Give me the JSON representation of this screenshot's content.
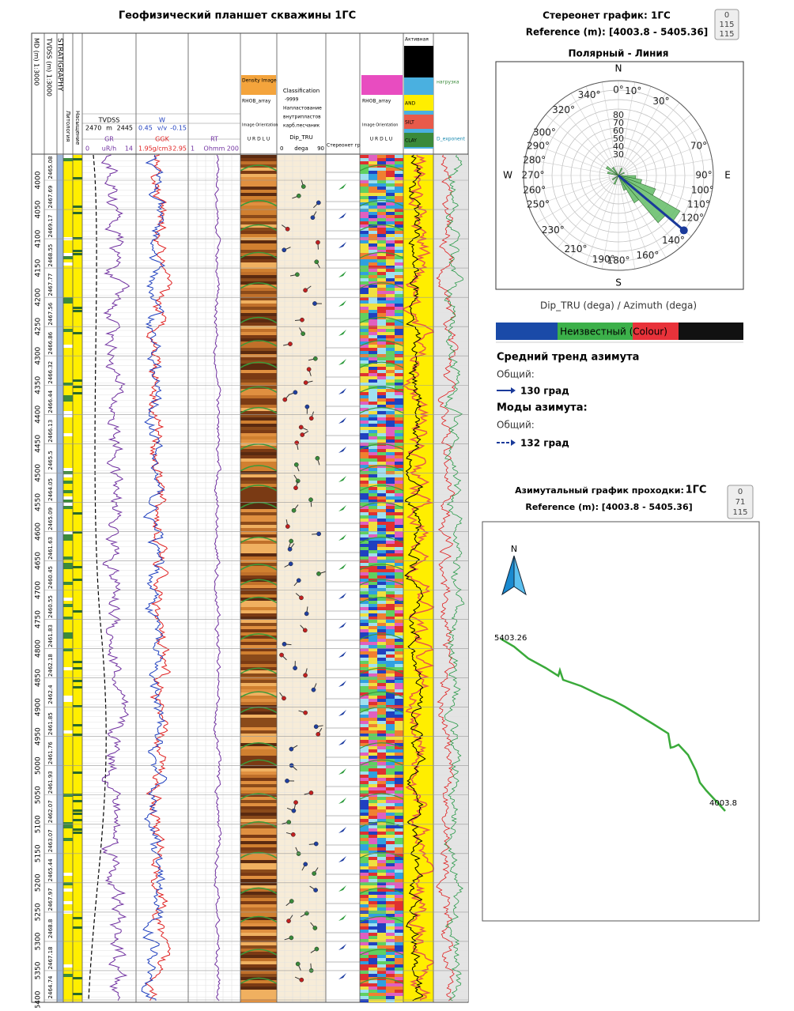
{
  "log": {
    "title": "Геофизический планшет скважины 1ГС",
    "header": {
      "md": "MD (m) 1:3000",
      "tvdss": "TVDSS (m) 1:3000",
      "strat": "STRATIGRAPHY",
      "lith": "Литология",
      "sat": "Насыщение",
      "tvdss_curve": "TVDSS",
      "tvdss_min": "2470",
      "tvdss_unit": "m",
      "tvdss_max": "2445",
      "gr": "GR",
      "gr_min": "0",
      "gr_unit": "uR/h",
      "gr_max": "14",
      "w": "W",
      "w_min": "0.45",
      "w_unit": "v/v",
      "w_max": "-0.15",
      "ggk": "GGK",
      "ggk_min": "1.95",
      "ggk_unit": "g/cm3",
      "ggk_max": "2.95",
      "rt": "RT",
      "rt_min": "1",
      "rt_unit": "Ohmm",
      "rt_max": "200",
      "density_image": "Density Image",
      "rhob_array": "RHOB_array",
      "image_orientation": "Image Orientation",
      "urdlu": "U R D L U",
      "classification": "Classification",
      "class_1": "-9999",
      "class_2": "Напластование",
      "class_3": "внутрипластов",
      "class_4": "карб.песчаник",
      "dip": "Dip_TRU",
      "dip_min": "0",
      "dip_unit": "dega",
      "dip_max": "90",
      "stereo": "Стереонет гр",
      "image2": "Image Orientation",
      "rhob_array2": "RHOB_array",
      "urdlu2": "U R D L U",
      "active": "Активная",
      "load": "нагрузка",
      "and": "AND",
      "silt": "SILT",
      "clay": "CLAY",
      "dexp": "D_exponent"
    },
    "depth_ticks": [
      "4000",
      "4050",
      "4100",
      "4150",
      "4200",
      "4250",
      "4300",
      "4350",
      "4400",
      "4450",
      "4500",
      "4550",
      "4600",
      "4650",
      "4700",
      "4750",
      "4800",
      "4850",
      "4900",
      "4950",
      "5000",
      "5050",
      "5100",
      "5150",
      "5200",
      "5250",
      "5300",
      "5350",
      "5400"
    ],
    "tvdss_ticks": [
      "2465.08",
      "2467.69",
      "2469.17",
      "2468.55",
      "2467.77",
      "2467.56",
      "2466.86",
      "2466.32",
      "2466.44",
      "2466.13",
      "2465.5",
      "2464.05",
      "2465.09",
      "2461.63",
      "2460.45",
      "2460.55",
      "2461.83",
      "2462.18",
      "2462.4",
      "2461.85",
      "2461.76",
      "2461.93",
      "2462.07",
      "2463.07",
      "2465.44",
      "2467.97",
      "2468.8",
      "2467.18",
      "2464.74"
    ]
  },
  "stereonet": {
    "title": "Стереонет график: 1ГС",
    "reference": "Reference (m): [4003.8 - 5405.36]",
    "counter": [
      "0",
      "115",
      "115"
    ],
    "subtitle": "Полярный - Линия",
    "compass": {
      "n": "N",
      "e": "E",
      "s": "S",
      "w": "W"
    },
    "azimuth_labels": [
      {
        "value": 0,
        "label": "0°"
      },
      {
        "value": 10,
        "label": "10°"
      },
      {
        "value": 30,
        "label": "30°"
      },
      {
        "value": 70,
        "label": "70°"
      },
      {
        "value": 90,
        "label": "90°"
      },
      {
        "value": 100,
        "label": "100°"
      },
      {
        "value": 110,
        "label": "110°"
      },
      {
        "value": 120,
        "label": "120°"
      },
      {
        "value": 140,
        "label": "140°"
      },
      {
        "value": 160,
        "label": "160°"
      },
      {
        "value": 180,
        "label": "180°"
      },
      {
        "value": 190,
        "label": "190°"
      },
      {
        "value": 210,
        "label": "210°"
      },
      {
        "value": 230,
        "label": "230°"
      },
      {
        "value": 250,
        "label": "250°"
      },
      {
        "value": 260,
        "label": "260°"
      },
      {
        "value": 270,
        "label": "270°"
      },
      {
        "value": 280,
        "label": "280°"
      },
      {
        "value": 290,
        "label": "290°"
      },
      {
        "value": 300,
        "label": "300°"
      },
      {
        "value": 320,
        "label": "320°"
      },
      {
        "value": 340,
        "label": "340°"
      }
    ],
    "dip_labels": [
      "80",
      "70",
      "60",
      "50",
      "40",
      "30"
    ],
    "axis_caption": "Dip_TRU (dega) / Azimuth (dega)",
    "color_bar": "Неизвестный (Colour)",
    "trend_title": "Средний тренд азимута",
    "trend_general": "Общий:",
    "trend_value": "130 град",
    "mode_title": "Моды азимута:",
    "mode_general": "Общий:",
    "mode_value": "132 град"
  },
  "azimuth_plot": {
    "title": "Азимутальный график проходки:",
    "well": "1ГС",
    "reference": "Reference (m): [4003.8 - 5405.36]",
    "counter": [
      "0",
      "71",
      "115"
    ],
    "north": "N",
    "start_label": "5403.26",
    "end_label": "4003.8"
  }
}
